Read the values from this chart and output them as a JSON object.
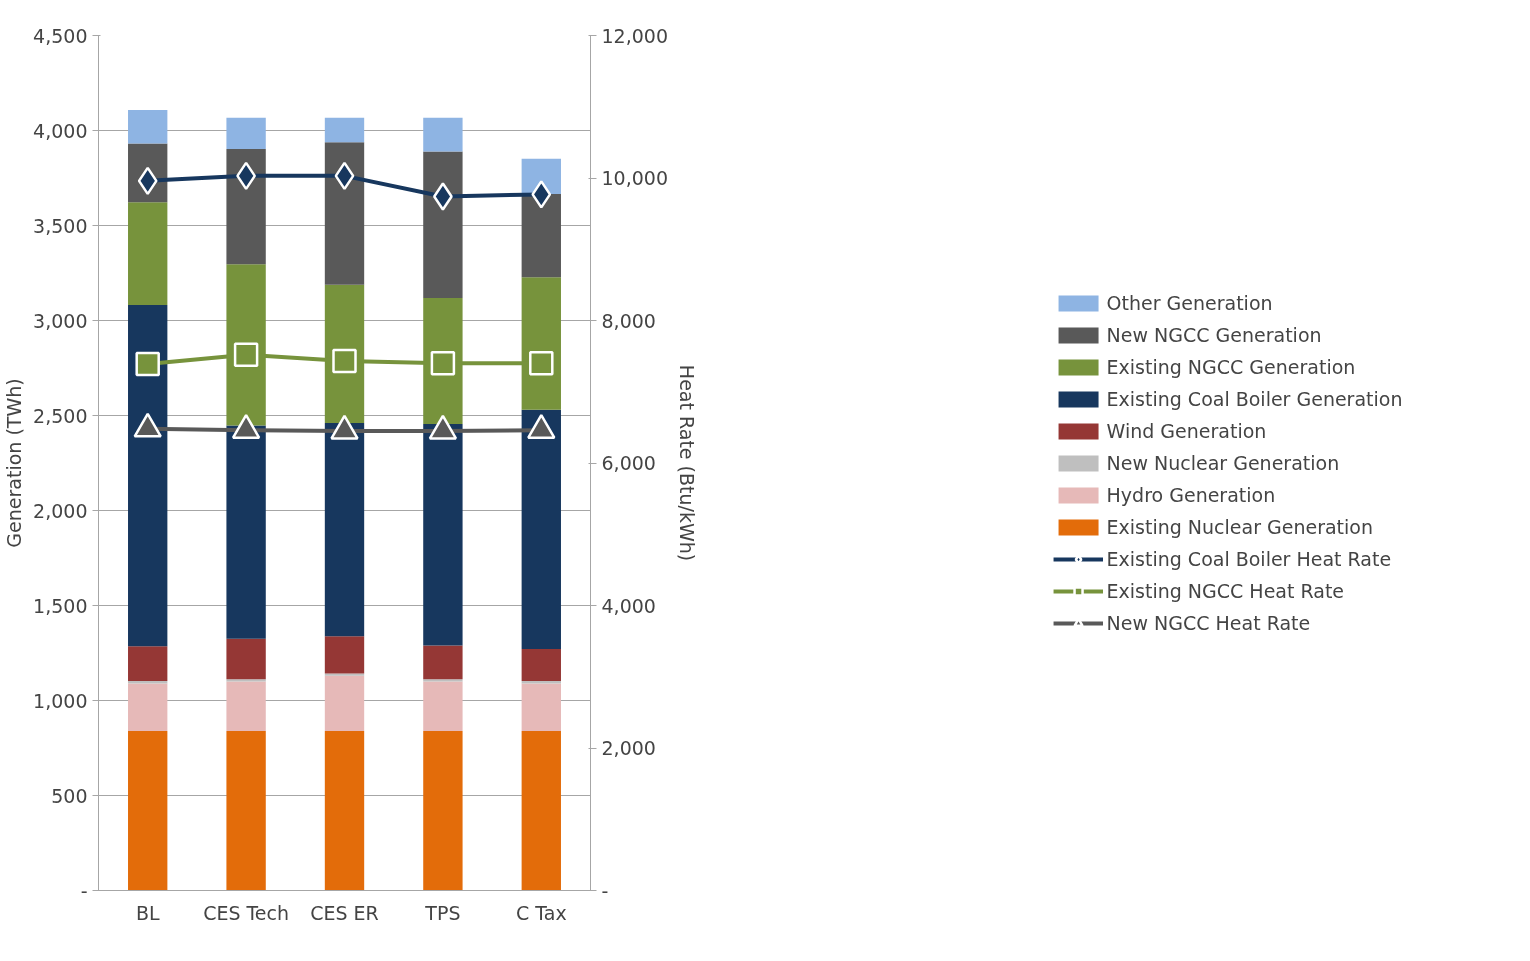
{
  "chart_data": {
    "type": "bar",
    "stacked": true,
    "ylabel": "Generation (TWh)",
    "y2label": "Heat Rate (Btu/kWh)",
    "categories": [
      "BL",
      "CES Tech",
      "CES ER",
      "TPS",
      "C Tax"
    ],
    "series": [
      {
        "name": "Existing Nuclear Generation",
        "color": "#e36c0a",
        "values": [
          840,
          840,
          840,
          840,
          840
        ]
      },
      {
        "name": "Hydro Generation",
        "color": "#e6b9b8",
        "values": [
          250,
          260,
          290,
          260,
          250
        ]
      },
      {
        "name": "New Nuclear Generation",
        "color": "#bfbfbf",
        "values": [
          12,
          12,
          12,
          12,
          12
        ]
      },
      {
        "name": "Wind Generation",
        "color": "#953735",
        "values": [
          184,
          213,
          196,
          178,
          169
        ]
      },
      {
        "name": "Existing Coal Boiler Generation",
        "color": "#17375e",
        "values": [
          1795,
          1123,
          1123,
          1165,
          1259
        ]
      },
      {
        "name": "Existing NGCC Generation",
        "color": "#77933c",
        "values": [
          541,
          848,
          727,
          663,
          698
        ]
      },
      {
        "name": "New NGCC Generation",
        "color": "#595959",
        "values": [
          310,
          607,
          750,
          772,
          438
        ]
      },
      {
        "name": "Other Generation",
        "color": "#8eb4e3",
        "values": [
          176,
          164,
          129,
          177,
          185
        ]
      },
      {
        "name": "Existing Coal Boiler Heat Rate",
        "type": "line",
        "axis": "y2",
        "marker": "diamond",
        "color": "#17375e",
        "values": [
          9960,
          10030,
          10030,
          9740,
          9770
        ]
      },
      {
        "name": "Existing NGCC Heat Rate",
        "type": "line",
        "axis": "y2",
        "marker": "square",
        "color": "#77933c",
        "values": [
          7390,
          7520,
          7430,
          7400,
          7400
        ]
      },
      {
        "name": "New NGCC Heat Rate",
        "type": "line",
        "axis": "y2",
        "marker": "triangle",
        "color": "#595959",
        "values": [
          6480,
          6460,
          6450,
          6450,
          6460
        ]
      }
    ],
    "ylim": [
      0,
      4500
    ],
    "yticks": [
      {
        "value": 0,
        "label": "-"
      },
      500,
      {
        "value": 1000,
        "label": "1,000"
      },
      {
        "value": 1500,
        "label": "1,500"
      },
      {
        "value": 2000,
        "label": "2,000"
      },
      {
        "value": 2500,
        "label": "2,500"
      },
      {
        "value": 3000,
        "label": "3,000"
      },
      {
        "value": 3500,
        "label": "3,500"
      },
      {
        "value": 4000,
        "label": "4,000"
      },
      {
        "value": 4500,
        "label": "4,500"
      }
    ],
    "y2lim": [
      0,
      12000
    ],
    "y2ticks": [
      {
        "value": 0,
        "label": "-"
      },
      {
        "value": 2000,
        "label": "2,000"
      },
      {
        "value": 4000,
        "label": "4,000"
      },
      {
        "value": 6000,
        "label": "6,000"
      },
      {
        "value": 8000,
        "label": "8,000"
      },
      {
        "value": 10000,
        "label": "10,000"
      },
      {
        "value": 12000,
        "label": "12,000"
      }
    ],
    "grid": "y",
    "legend": "right"
  }
}
